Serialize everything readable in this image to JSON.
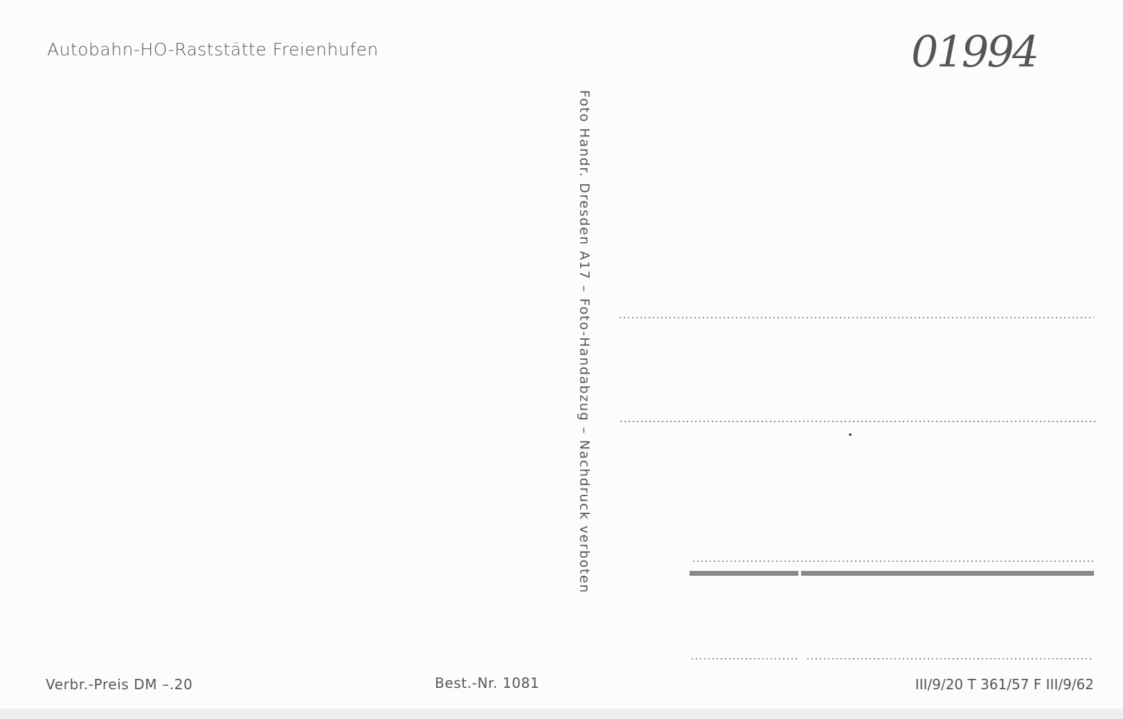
{
  "header": {
    "title": "Autobahn-HO-Raststätte Freienhufen"
  },
  "annotation": "01994",
  "imprint": "Foto Handr. Dresden A17 – Foto-Handabzug – Nachdruck verboten",
  "footer": {
    "price": "Verbr.-Preis DM –.20",
    "order_number": "Best.-Nr. 1081",
    "license": "III/9/20 T 361/57 F III/9/62"
  }
}
